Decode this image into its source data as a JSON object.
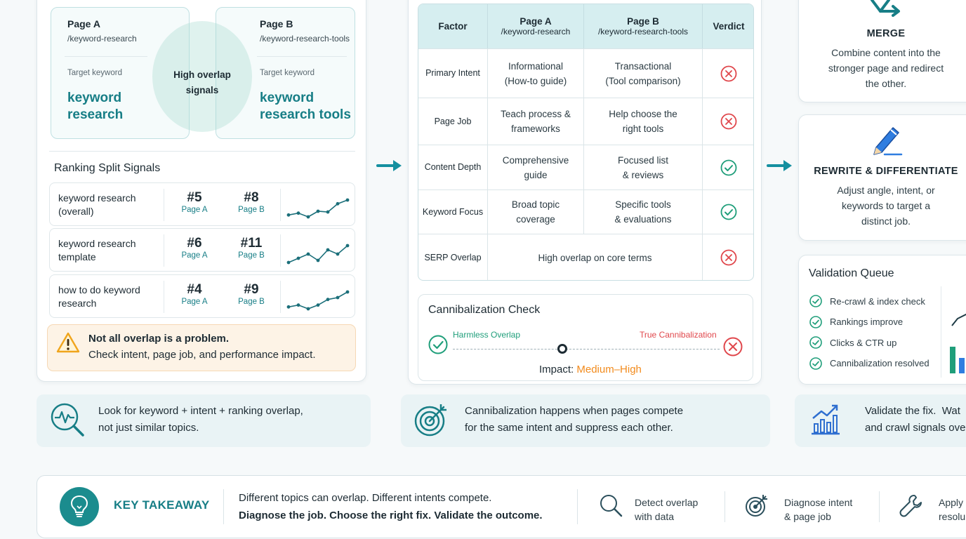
{
  "pages": {
    "a": {
      "title": "Page A",
      "url": "/keyword-research",
      "target_label": "Target keyword",
      "target": "keyword\nresearch"
    },
    "b": {
      "title": "Page B",
      "url": "/keyword-research-tools",
      "target_label": "Target keyword",
      "target": "keyword\nresearch tools"
    },
    "overlap_label": "High overlap\nsignals"
  },
  "ranking": {
    "title": "Ranking Split Signals",
    "rows": [
      {
        "keyword": "keyword research\n(overall)",
        "a_rank": "#5",
        "a_label": "Page A",
        "b_rank": "#8",
        "b_label": "Page B",
        "trend": [
          2,
          2.5,
          1.5,
          3,
          2.8,
          5,
          6
        ]
      },
      {
        "keyword": "keyword research\ntemplate",
        "a_rank": "#6",
        "a_label": "Page A",
        "b_rank": "#11",
        "b_label": "Page B",
        "trend": [
          2,
          3,
          4,
          2.5,
          5,
          4,
          6
        ]
      },
      {
        "keyword": "how to do keyword\nresearch",
        "a_rank": "#4",
        "a_label": "Page A",
        "b_rank": "#9",
        "b_label": "Page B",
        "trend": [
          2,
          2.5,
          1.5,
          2.5,
          4,
          4.5,
          6
        ]
      }
    ]
  },
  "warning": {
    "title": "Not all overlap is a problem.",
    "text": "Check intent, page job, and performance impact."
  },
  "table": {
    "headers": [
      {
        "l1": "Factor",
        "l2": ""
      },
      {
        "l1": "Page A",
        "l2": "/keyword-research"
      },
      {
        "l1": "Page B",
        "l2": "/keyword-research-tools"
      },
      {
        "l1": "Verdict",
        "l2": ""
      }
    ],
    "rows": [
      {
        "factor": "Primary Intent",
        "a": "Informational\n(How-to guide)",
        "b": "Transactional\n(Tool comparison)",
        "verdict": "conflict"
      },
      {
        "factor": "Page Job",
        "a": "Teach process &\nframeworks",
        "b": "Help choose the\nright tools",
        "verdict": "conflict"
      },
      {
        "factor": "Content Depth",
        "a": "Comprehensive\nguide",
        "b": "Focused list\n& reviews",
        "verdict": "ok"
      },
      {
        "factor": "Keyword Focus",
        "a": "Broad topic\ncoverage",
        "b": "Specific tools\n& evaluations",
        "verdict": "ok"
      },
      {
        "factor": "SERP Overlap",
        "merged": "High overlap on core terms",
        "verdict": "conflict"
      }
    ]
  },
  "check": {
    "title": "Cannibalization Check",
    "left_label": "Harmless Overlap",
    "right_label": "True Cannibalization",
    "impact_label": "Impact: ",
    "impact_value": "Medium–High",
    "marker_position": 0.41
  },
  "options": {
    "merge": {
      "title": "MERGE",
      "desc": "Combine content into the\nstronger page and redirect\nthe other."
    },
    "rewrite": {
      "title": "REWRITE & DIFFERENTIATE",
      "desc": "Adjust angle, intent, or\nkeywords to target a\ndistinct job."
    }
  },
  "validation": {
    "title": "Validation Queue",
    "items": [
      "Re-crawl & index check",
      "Rankings improve",
      "Clicks & CTR up",
      "Cannibalization resolved"
    ]
  },
  "tips": [
    {
      "text": "Look for keyword + intent + ranking overlap,\nnot just similar topics.",
      "icon": "search-pulse-icon"
    },
    {
      "text": "Cannibalization happens when pages compete\nfor the same intent and suppress each other.",
      "icon": "target-icon"
    },
    {
      "text": "Validate the fix.  Wat\nand crawl signals ove",
      "icon": "chart-up-icon"
    }
  ],
  "takeaway": {
    "title": "KEY TAKEAWAY",
    "line1": "Different topics can overlap. Different intents compete.",
    "line2": "Diagnose the job. Choose the right fix. Validate the outcome.",
    "steps": [
      {
        "label": "Detect overlap\nwith data",
        "icon": "magnifier-icon"
      },
      {
        "label": "Diagnose intent\n& page job",
        "icon": "target-icon"
      },
      {
        "label": "Apply\nresolu",
        "icon": "wrench-icon"
      }
    ]
  },
  "colors": {
    "teal": "#177e86",
    "red": "#e0474c",
    "green": "#1f9e7a",
    "orange": "#f28b1d",
    "amber": "#f0a51c"
  }
}
